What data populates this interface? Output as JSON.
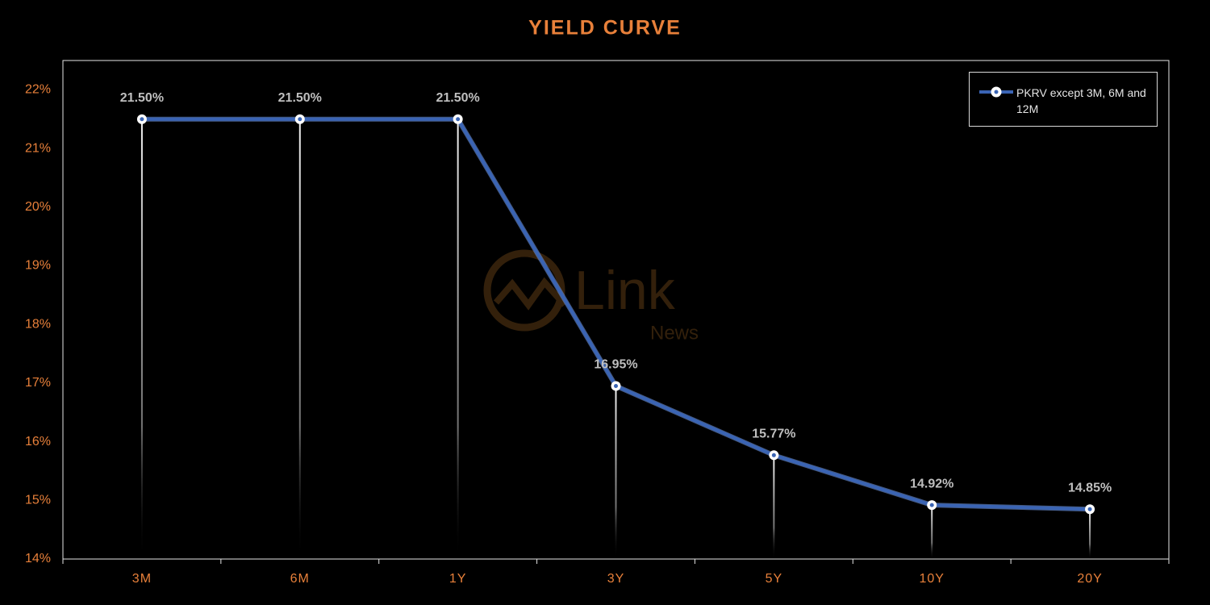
{
  "chart_data": {
    "type": "line",
    "title": "YIELD CURVE",
    "categories": [
      "3M",
      "6M",
      "1Y",
      "3Y",
      "5Y",
      "10Y",
      "20Y"
    ],
    "series": [
      {
        "name": "PKRV except 3M, 6M and 12M",
        "color": "#3a64b4",
        "values": [
          21.5,
          21.5,
          21.5,
          16.95,
          15.77,
          14.92,
          14.85
        ],
        "value_labels": [
          "21.50%",
          "21.50%",
          "21.50%",
          "16.95%",
          "15.77%",
          "14.92%",
          "14.85%"
        ]
      }
    ],
    "ylim": [
      14,
      22.5
    ],
    "yticks": [
      {
        "value": 14,
        "label": "14%"
      },
      {
        "value": 15,
        "label": "15%"
      },
      {
        "value": 16,
        "label": "16%"
      },
      {
        "value": 17,
        "label": "17%"
      },
      {
        "value": 18,
        "label": "18%"
      },
      {
        "value": 19,
        "label": "19%"
      },
      {
        "value": 20,
        "label": "20%"
      },
      {
        "value": 21,
        "label": "21%"
      },
      {
        "value": 22,
        "label": "22%"
      }
    ],
    "grid": false,
    "legend": "top-right"
  },
  "watermark": {
    "text": "Link",
    "subtext": "News"
  }
}
